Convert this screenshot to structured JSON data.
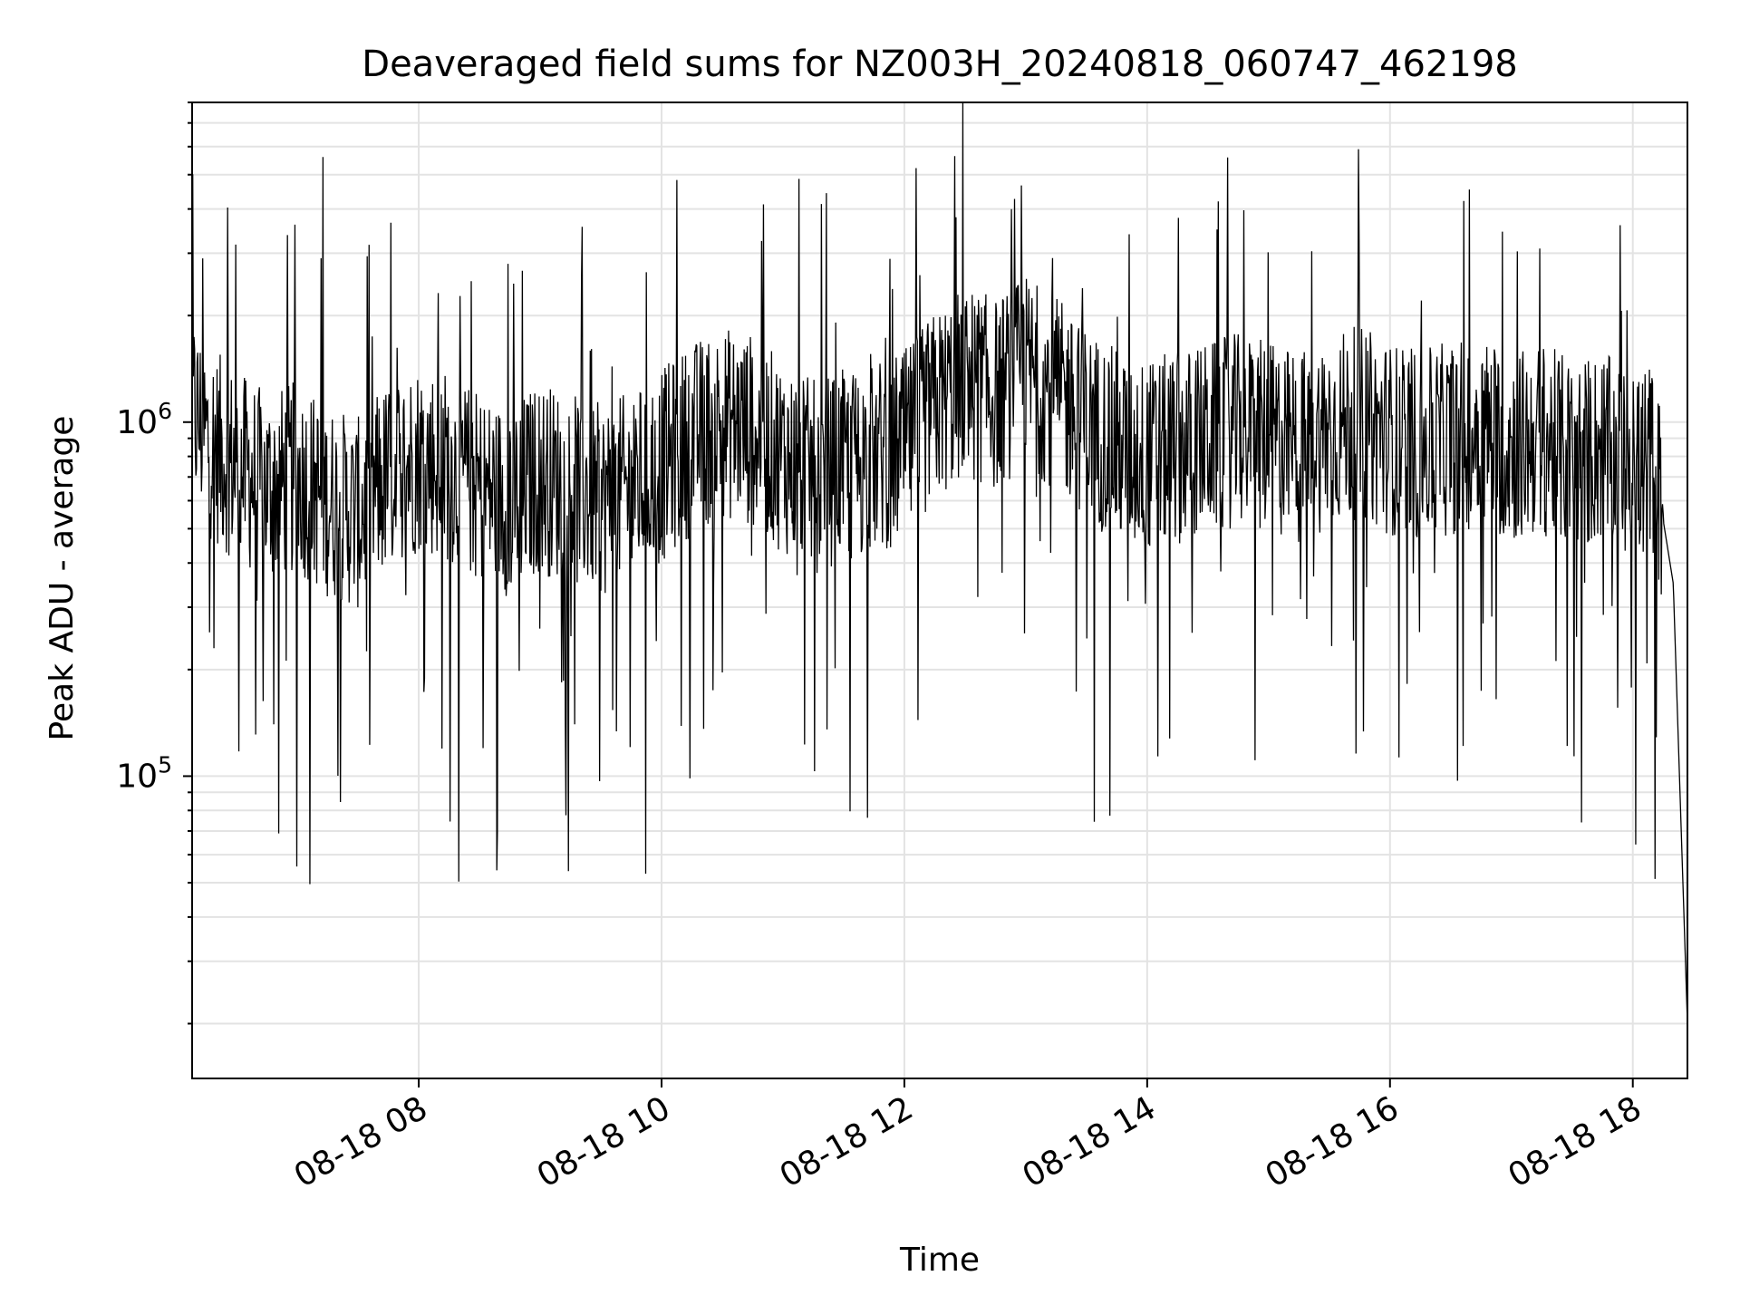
{
  "chart_data": {
    "type": "line",
    "title": "Deaveraged field sums for NZ003H_20240818_060747_462198",
    "xlabel": "Time",
    "ylabel": "Peak ADU - average",
    "x_ticks": [
      "08-18 08",
      "08-18 10",
      "08-18 12",
      "08-18 14",
      "08-18 16",
      "08-18 18"
    ],
    "y_ticks": [
      {
        "base": "10",
        "exp": "5",
        "value": 100000
      },
      {
        "base": "10",
        "exp": "6",
        "value": 1000000
      }
    ],
    "xlim": [
      "2024-08-18 06:08",
      "2024-08-18 18:27"
    ],
    "ylim": [
      14000,
      8000000
    ],
    "yscale": "log",
    "grid": true,
    "line_color": "#000000",
    "series": [
      {
        "x": [
          "2024-08-18 06:08",
          "2024-08-18 06:15",
          "2024-08-18 06:30",
          "2024-08-18 06:45",
          "2024-08-18 07:00",
          "2024-08-18 07:15",
          "2024-08-18 07:30",
          "2024-08-18 07:45",
          "2024-08-18 08:00",
          "2024-08-18 08:15",
          "2024-08-18 08:30",
          "2024-08-18 08:45",
          "2024-08-18 09:00",
          "2024-08-18 09:15",
          "2024-08-18 09:30",
          "2024-08-18 09:45",
          "2024-08-18 10:00",
          "2024-08-18 10:15",
          "2024-08-18 10:30",
          "2024-08-18 10:45",
          "2024-08-18 11:00",
          "2024-08-18 11:15",
          "2024-08-18 11:30",
          "2024-08-18 11:45",
          "2024-08-18 12:00",
          "2024-08-18 12:15",
          "2024-08-18 12:30",
          "2024-08-18 12:45",
          "2024-08-18 13:00",
          "2024-08-18 13:15",
          "2024-08-18 13:30",
          "2024-08-18 13:45",
          "2024-08-18 14:00",
          "2024-08-18 14:15",
          "2024-08-18 14:30",
          "2024-08-18 14:45",
          "2024-08-18 15:00",
          "2024-08-18 15:15",
          "2024-08-18 15:30",
          "2024-08-18 15:45",
          "2024-08-18 16:00",
          "2024-08-18 16:15",
          "2024-08-18 16:30",
          "2024-08-18 16:45",
          "2024-08-18 17:00",
          "2024-08-18 17:15",
          "2024-08-18 17:30",
          "2024-08-18 17:45",
          "2024-08-18 18:00",
          "2024-08-18 18:10",
          "2024-08-18 18:20",
          "2024-08-18 18:27"
        ],
        "values": [
          1100000,
          900000,
          750000,
          650000,
          700000,
          600000,
          550000,
          700000,
          800000,
          750000,
          650000,
          600000,
          700000,
          650000,
          600000,
          650000,
          750000,
          900000,
          1000000,
          950000,
          800000,
          700000,
          750000,
          800000,
          850000,
          1100000,
          1300000,
          1200000,
          1400000,
          1200000,
          1000000,
          850000,
          800000,
          850000,
          900000,
          950000,
          900000,
          850000,
          950000,
          1000000,
          900000,
          850000,
          900000,
          950000,
          850000,
          900000,
          800000,
          850000,
          700000,
          800000,
          350000,
          20000
        ]
      }
    ]
  }
}
